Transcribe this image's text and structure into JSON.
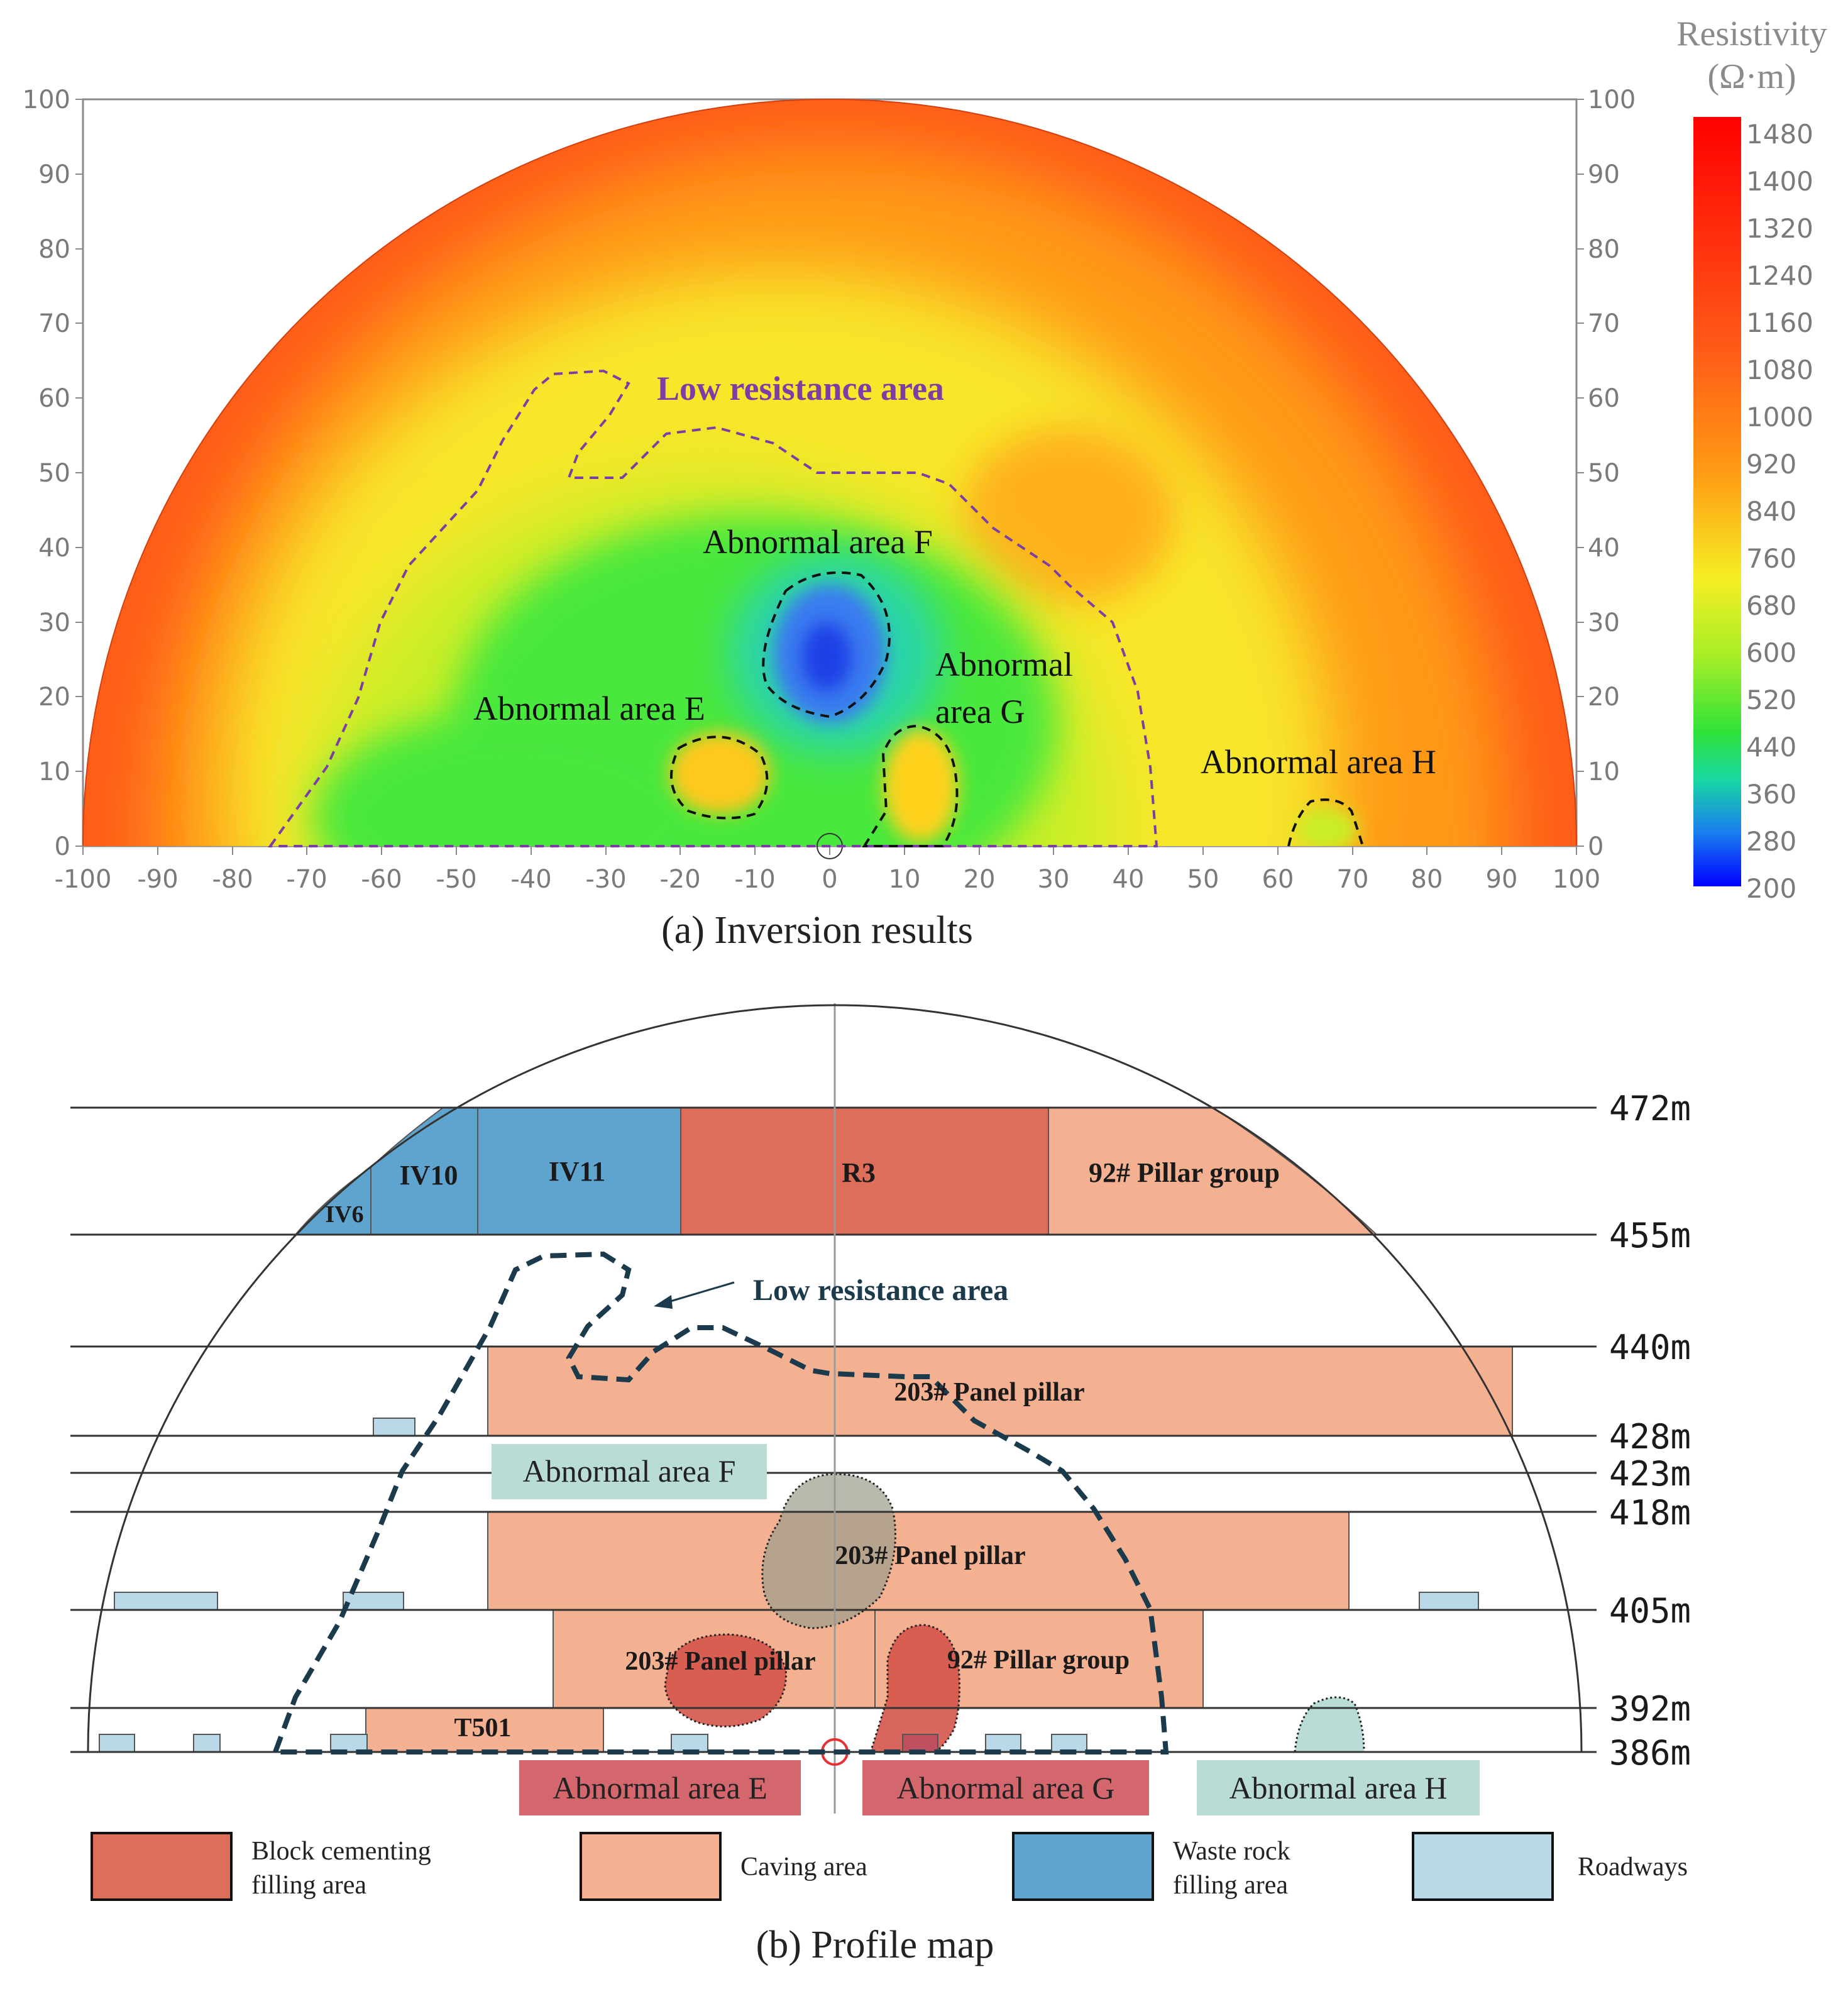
{
  "panel_a": {
    "caption": "(a) Inversion results",
    "y_ticks": [
      "0",
      "10",
      "20",
      "30",
      "40",
      "50",
      "60",
      "70",
      "80",
      "90",
      "100"
    ],
    "x_ticks": [
      "-100",
      "-90",
      "-80",
      "-70",
      "-60",
      "-50",
      "-40",
      "-30",
      "-20",
      "-10",
      "0",
      "10",
      "20",
      "30",
      "40",
      "50",
      "60",
      "70",
      "80",
      "90",
      "100"
    ],
    "colorbar": {
      "title_line1": "Resistivity",
      "title_line2": "(Ω·m)",
      "ticks": [
        "1480",
        "1400",
        "1320",
        "1240",
        "1160",
        "1080",
        "1000",
        "920",
        "840",
        "760",
        "680",
        "600",
        "520",
        "440",
        "360",
        "280",
        "200"
      ]
    },
    "labels": {
      "low_resistance": "Low resistance area",
      "area_f": "Abnormal area F",
      "area_e": "Abnormal area E",
      "area_g_line1": "Abnormal",
      "area_g_line2": "area G",
      "area_h": "Abnormal area H"
    },
    "colors": {
      "outer": "#ff5c1a",
      "orange": "#ff9a12",
      "yellow": "#f8e62a",
      "yellow_green": "#c9ee28",
      "green": "#48e83c",
      "cyan": "#2ad6a6",
      "blue": "#1f3fe6",
      "low_resistance_outline": "#7b3ea6",
      "label_purple": "#7b3ea6"
    }
  },
  "panel_b": {
    "caption": "(b) Profile map",
    "levels": [
      "472m",
      "455m",
      "440m",
      "428m",
      "423m",
      "418m",
      "405m",
      "392m",
      "386m"
    ],
    "blocks": {
      "iv6": "IV6",
      "iv10": "IV10",
      "iv11": "IV11",
      "r3": "R3",
      "pillar_group_top": "92# Pillar group",
      "panel_pillar_440": "203# Panel pillar",
      "panel_pillar_418": "203# Panel pillar",
      "panel_pillar_405": "203# Panel pillar",
      "pillar_group_405": "92# Pillar group",
      "t501": "T501"
    },
    "labels": {
      "low_resistance": "Low resistance area",
      "area_f": "Abnormal area F",
      "area_e": "Abnormal area E",
      "area_g": "Abnormal area G",
      "area_h": "Abnormal area H"
    },
    "legend": [
      {
        "line1": "Block cementing",
        "line2": "filling area",
        "color": "#dd6e5a"
      },
      {
        "line1": "Caving area",
        "line2": "",
        "color": "#f4b191"
      },
      {
        "line1": "Waste rock",
        "line2": "filling area",
        "color": "#5fa4cf"
      },
      {
        "line1": "Roadways",
        "line2": "",
        "color": "#b9d9e8"
      }
    ],
    "colors": {
      "block_cementing": "#dd6e5a",
      "caving": "#f4b191",
      "waste_rock": "#5fa4cf",
      "roadway": "#b9d9e8",
      "abnormal_red": "#d4676d",
      "abnormal_teal": "#b9dcd6",
      "outline_dark": "#1b3a4b"
    }
  }
}
